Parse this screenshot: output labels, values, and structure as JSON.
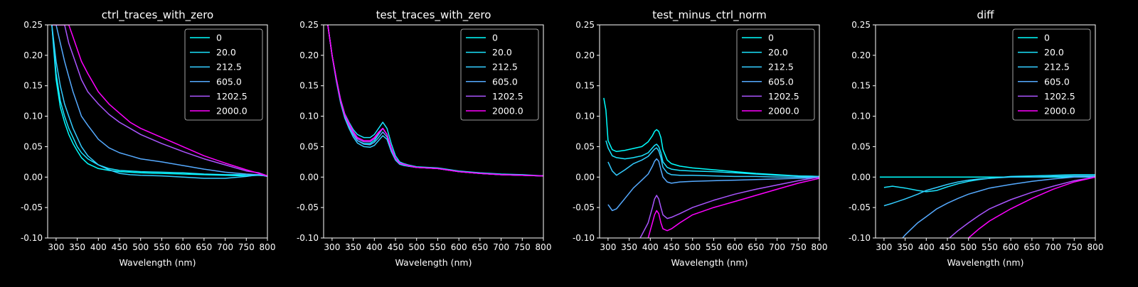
{
  "figure": {
    "background": "#000000",
    "foreground": "#ffffff"
  },
  "legend_labels": [
    "0",
    "20.0",
    "212.5",
    "605.0",
    "1202.5",
    "2000.0"
  ],
  "legend_colors": [
    "#00ffff",
    "#1ae5ff",
    "#33ccff",
    "#55aaff",
    "#aa55ff",
    "#ff00ff"
  ],
  "chart_data": [
    {
      "type": "line",
      "title": "ctrl_traces_with_zero",
      "xlabel": "Wavelength (nm)",
      "ylabel": "",
      "xlim": [
        280,
        800
      ],
      "ylim": [
        -0.1,
        0.25
      ],
      "xticks": [
        300,
        350,
        400,
        450,
        500,
        550,
        600,
        650,
        700,
        750,
        800
      ],
      "yticks": [
        -0.1,
        -0.05,
        0.0,
        0.05,
        0.1,
        0.15,
        0.2,
        0.25
      ],
      "legend": "top-right",
      "grid": false,
      "x": [
        290,
        300,
        310,
        320,
        330,
        340,
        350,
        360,
        375,
        400,
        425,
        450,
        475,
        500,
        550,
        600,
        650,
        700,
        750,
        780,
        800
      ],
      "series": [
        {
          "name": "0",
          "color": "#00ffff",
          "values": [
            0.25,
            0.16,
            0.115,
            0.09,
            0.07,
            0.055,
            0.043,
            0.032,
            0.022,
            0.014,
            0.011,
            0.009,
            0.008,
            0.007,
            0.006,
            0.005,
            0.004,
            0.003,
            0.002,
            0.003,
            0.002
          ]
        },
        {
          "name": "20.0",
          "color": "#1ae5ff",
          "values": [
            0.25,
            0.17,
            0.125,
            0.1,
            0.08,
            0.065,
            0.05,
            0.04,
            0.03,
            0.02,
            0.014,
            0.011,
            0.01,
            0.009,
            0.008,
            0.007,
            0.005,
            0.004,
            0.004,
            0.003,
            0.002
          ]
        },
        {
          "name": "212.5",
          "color": "#33ccff",
          "values": [
            0.25,
            0.19,
            0.15,
            0.12,
            0.1,
            0.08,
            0.065,
            0.05,
            0.035,
            0.02,
            0.012,
            0.006,
            0.004,
            0.003,
            0.002,
            0.0,
            -0.002,
            -0.002,
            0.001,
            0.004,
            0.001
          ]
        },
        {
          "name": "605.0",
          "color": "#55aaff",
          "values": [
            0.25,
            0.25,
            0.22,
            0.19,
            0.165,
            0.14,
            0.12,
            0.1,
            0.085,
            0.062,
            0.048,
            0.04,
            0.035,
            0.03,
            0.025,
            0.019,
            0.013,
            0.008,
            0.005,
            0.004,
            0.001
          ]
        },
        {
          "name": "1202.5",
          "color": "#aa55ff",
          "values": [
            0.25,
            0.25,
            0.25,
            0.25,
            0.22,
            0.2,
            0.18,
            0.16,
            0.14,
            0.12,
            0.103,
            0.09,
            0.08,
            0.07,
            0.055,
            0.042,
            0.03,
            0.02,
            0.01,
            0.007,
            0.002
          ]
        },
        {
          "name": "2000.0",
          "color": "#ff00ff",
          "values": [
            0.25,
            0.25,
            0.25,
            0.25,
            0.25,
            0.23,
            0.21,
            0.19,
            0.17,
            0.14,
            0.12,
            0.105,
            0.09,
            0.08,
            0.065,
            0.05,
            0.035,
            0.023,
            0.012,
            0.006,
            0.002
          ]
        }
      ]
    },
    {
      "type": "line",
      "title": "test_traces_with_zero",
      "xlabel": "Wavelength (nm)",
      "ylabel": "",
      "xlim": [
        280,
        800
      ],
      "ylim": [
        -0.1,
        0.25
      ],
      "xticks": [
        300,
        350,
        400,
        450,
        500,
        550,
        600,
        650,
        700,
        750,
        800
      ],
      "yticks": [
        -0.1,
        -0.05,
        0.0,
        0.05,
        0.1,
        0.15,
        0.2,
        0.25
      ],
      "legend": "top-right",
      "grid": false,
      "x": [
        290,
        300,
        310,
        320,
        330,
        340,
        350,
        360,
        375,
        390,
        400,
        410,
        420,
        430,
        440,
        450,
        460,
        470,
        480,
        500,
        550,
        600,
        650,
        700,
        750,
        800
      ],
      "series": [
        {
          "name": "0",
          "color": "#00ffff",
          "values": [
            0.25,
            0.2,
            0.16,
            0.125,
            0.1,
            0.085,
            0.07,
            0.06,
            0.055,
            0.055,
            0.06,
            0.07,
            0.08,
            0.07,
            0.045,
            0.03,
            0.022,
            0.02,
            0.018,
            0.016,
            0.014,
            0.009,
            0.006,
            0.004,
            0.003,
            0.002
          ]
        },
        {
          "name": "20.0",
          "color": "#1ae5ff",
          "values": [
            0.25,
            0.2,
            0.162,
            0.128,
            0.104,
            0.09,
            0.078,
            0.07,
            0.065,
            0.065,
            0.07,
            0.08,
            0.09,
            0.08,
            0.055,
            0.035,
            0.025,
            0.022,
            0.02,
            0.017,
            0.015,
            0.01,
            0.007,
            0.005,
            0.004,
            0.002
          ]
        },
        {
          "name": "212.5",
          "color": "#33ccff",
          "values": [
            0.25,
            0.2,
            0.158,
            0.122,
            0.097,
            0.08,
            0.066,
            0.056,
            0.05,
            0.049,
            0.052,
            0.06,
            0.068,
            0.062,
            0.042,
            0.028,
            0.021,
            0.019,
            0.018,
            0.016,
            0.014,
            0.009,
            0.006,
            0.004,
            0.003,
            0.002
          ]
        },
        {
          "name": "605.0",
          "color": "#55aaff",
          "values": [
            0.25,
            0.2,
            0.16,
            0.124,
            0.1,
            0.083,
            0.07,
            0.06,
            0.054,
            0.053,
            0.057,
            0.065,
            0.074,
            0.066,
            0.045,
            0.03,
            0.022,
            0.02,
            0.018,
            0.016,
            0.014,
            0.009,
            0.006,
            0.004,
            0.003,
            0.002
          ]
        },
        {
          "name": "1202.5",
          "color": "#aa55ff",
          "values": [
            0.25,
            0.2,
            0.161,
            0.126,
            0.102,
            0.086,
            0.073,
            0.063,
            0.058,
            0.058,
            0.063,
            0.072,
            0.08,
            0.07,
            0.048,
            0.031,
            0.023,
            0.021,
            0.019,
            0.016,
            0.014,
            0.009,
            0.006,
            0.004,
            0.003,
            0.002
          ]
        },
        {
          "name": "2000.0",
          "color": "#ff00ff",
          "values": [
            0.25,
            0.2,
            0.162,
            0.127,
            0.103,
            0.088,
            0.075,
            0.065,
            0.06,
            0.06,
            0.065,
            0.074,
            0.08,
            0.07,
            0.048,
            0.031,
            0.023,
            0.021,
            0.019,
            0.016,
            0.014,
            0.009,
            0.006,
            0.004,
            0.003,
            0.002
          ]
        }
      ]
    },
    {
      "type": "line",
      "title": "test_minus_ctrl_norm",
      "xlabel": "Wavelength (nm)",
      "ylabel": "",
      "xlim": [
        280,
        800
      ],
      "ylim": [
        -0.1,
        0.25
      ],
      "xticks": [
        300,
        350,
        400,
        450,
        500,
        550,
        600,
        650,
        700,
        750,
        800
      ],
      "yticks": [
        -0.1,
        -0.05,
        0.0,
        0.05,
        0.1,
        0.15,
        0.2,
        0.25
      ],
      "legend": "top-right",
      "grid": false,
      "x": [
        290,
        295,
        300,
        310,
        320,
        340,
        360,
        380,
        395,
        405,
        410,
        415,
        420,
        425,
        430,
        440,
        450,
        470,
        500,
        550,
        600,
        650,
        700,
        750,
        800
      ],
      "series": [
        {
          "name": "0",
          "color": "#00ffff",
          "values": [
            0.13,
            0.11,
            0.06,
            0.045,
            0.042,
            0.044,
            0.047,
            0.05,
            0.058,
            0.068,
            0.075,
            0.078,
            0.075,
            0.065,
            0.045,
            0.028,
            0.022,
            0.018,
            0.015,
            0.012,
            0.009,
            0.006,
            0.004,
            0.002,
            0.001
          ]
        },
        {
          "name": "20.0",
          "color": "#1ae5ff",
          "values": [
            null,
            0.06,
            0.048,
            0.035,
            0.032,
            0.03,
            0.032,
            0.035,
            0.04,
            0.048,
            0.052,
            0.054,
            0.05,
            0.04,
            0.025,
            0.016,
            0.013,
            0.011,
            0.01,
            0.009,
            0.007,
            0.005,
            0.003,
            0.002,
            0.001
          ]
        },
        {
          "name": "212.5",
          "color": "#33ccff",
          "values": [
            null,
            null,
            0.025,
            0.01,
            0.003,
            0.012,
            0.022,
            0.028,
            0.034,
            0.042,
            0.046,
            0.048,
            0.043,
            0.032,
            0.016,
            0.007,
            0.004,
            0.003,
            0.003,
            0.002,
            0.001,
            0.001,
            0.0,
            0.0,
            0.0
          ]
        },
        {
          "name": "605.0",
          "color": "#55aaff",
          "values": [
            null,
            null,
            -0.045,
            -0.055,
            -0.052,
            -0.035,
            -0.018,
            -0.005,
            0.005,
            0.018,
            0.026,
            0.03,
            0.026,
            0.012,
            0.0,
            -0.008,
            -0.01,
            -0.008,
            -0.007,
            -0.006,
            -0.005,
            -0.004,
            -0.003,
            -0.002,
            -0.001
          ]
        },
        {
          "name": "1202.5",
          "color": "#aa55ff",
          "values": [
            null,
            null,
            null,
            null,
            null,
            null,
            -0.12,
            -0.095,
            -0.075,
            -0.05,
            -0.036,
            -0.03,
            -0.036,
            -0.05,
            -0.062,
            -0.068,
            -0.066,
            -0.06,
            -0.05,
            -0.038,
            -0.028,
            -0.02,
            -0.013,
            -0.006,
            0.0
          ]
        },
        {
          "name": "2000.0",
          "color": "#ff00ff",
          "values": [
            null,
            null,
            null,
            null,
            null,
            null,
            null,
            -0.125,
            -0.1,
            -0.075,
            -0.062,
            -0.055,
            -0.06,
            -0.075,
            -0.085,
            -0.088,
            -0.085,
            -0.075,
            -0.062,
            -0.05,
            -0.04,
            -0.03,
            -0.02,
            -0.01,
            -0.002
          ]
        }
      ]
    },
    {
      "type": "line",
      "title": "diff",
      "xlabel": "Wavelength (nm)",
      "ylabel": "",
      "xlim": [
        280,
        800
      ],
      "ylim": [
        -0.1,
        0.25
      ],
      "xticks": [
        300,
        350,
        400,
        450,
        500,
        550,
        600,
        650,
        700,
        750,
        800
      ],
      "yticks": [
        -0.1,
        -0.05,
        0.0,
        0.05,
        0.1,
        0.15,
        0.2,
        0.25
      ],
      "legend": "top-right",
      "grid": false,
      "x": [
        290,
        300,
        320,
        350,
        380,
        400,
        425,
        450,
        475,
        500,
        525,
        550,
        600,
        650,
        700,
        750,
        800
      ],
      "series": [
        {
          "name": "0",
          "color": "#00ffff",
          "values": [
            0.0,
            0.0,
            0.0,
            0.0,
            0.0,
            0.0,
            0.0,
            0.0,
            0.0,
            0.0,
            0.0,
            0.0,
            0.0,
            0.0,
            0.0,
            0.0,
            0.0
          ]
        },
        {
          "name": "20.0",
          "color": "#1ae5ff",
          "values": [
            null,
            -0.017,
            -0.015,
            -0.018,
            -0.022,
            -0.024,
            -0.022,
            -0.016,
            -0.011,
            -0.007,
            -0.004,
            -0.002,
            0.001,
            0.002,
            0.003,
            0.004,
            0.004
          ]
        },
        {
          "name": "212.5",
          "color": "#33ccff",
          "values": [
            null,
            -0.047,
            -0.043,
            -0.036,
            -0.028,
            -0.022,
            -0.017,
            -0.012,
            -0.008,
            -0.005,
            -0.003,
            -0.002,
            0.0,
            0.0,
            0.001,
            0.002,
            0.002
          ]
        },
        {
          "name": "605.0",
          "color": "#55aaff",
          "values": [
            null,
            null,
            -0.12,
            -0.095,
            -0.075,
            -0.065,
            -0.052,
            -0.043,
            -0.035,
            -0.028,
            -0.023,
            -0.018,
            -0.012,
            -0.007,
            -0.003,
            0.0,
            0.001
          ]
        },
        {
          "name": "1202.5",
          "color": "#aa55ff",
          "values": [
            null,
            null,
            null,
            null,
            null,
            null,
            -0.12,
            -0.103,
            -0.088,
            -0.075,
            -0.063,
            -0.052,
            -0.037,
            -0.025,
            -0.015,
            -0.006,
            0.0
          ]
        },
        {
          "name": "2000.0",
          "color": "#ff00ff",
          "values": [
            null,
            null,
            null,
            null,
            null,
            null,
            null,
            null,
            -0.115,
            -0.1,
            -0.085,
            -0.072,
            -0.052,
            -0.035,
            -0.02,
            -0.008,
            0.0
          ]
        }
      ]
    }
  ]
}
